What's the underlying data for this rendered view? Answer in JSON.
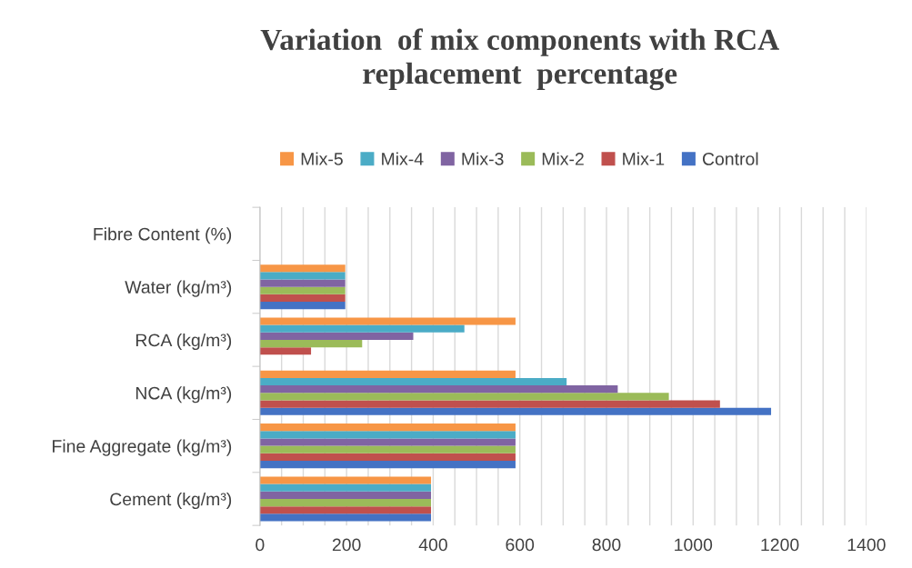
{
  "chart_data": {
    "type": "bar",
    "orientation": "horizontal",
    "title": "Variation  of mix components with RCA\nreplacement  percentage",
    "categories": [
      "Fibre Content (%)",
      "Water (kg/m³)",
      "RCA (kg/m³)",
      "NCA (kg/m³)",
      "Fine Aggregate (kg/m³)",
      "Cement (kg/m³)"
    ],
    "series": [
      {
        "name": "Control",
        "color": "#4472c4",
        "values": [
          0,
          197,
          0,
          1180,
          590,
          395
        ]
      },
      {
        "name": "Mix-1",
        "color": "#c0504d",
        "values": [
          0,
          197,
          118,
          1062,
          590,
          395
        ]
      },
      {
        "name": "Mix-2",
        "color": "#9bbb59",
        "values": [
          0,
          197,
          236,
          944,
          590,
          395
        ]
      },
      {
        "name": "Mix-3",
        "color": "#8064a2",
        "values": [
          0,
          197,
          354,
          826,
          590,
          395
        ]
      },
      {
        "name": "Mix-4",
        "color": "#4bacc6",
        "values": [
          0,
          197,
          472,
          708,
          590,
          395
        ]
      },
      {
        "name": "Mix-5",
        "color": "#f79646",
        "values": [
          0,
          197,
          590,
          590,
          590,
          395
        ]
      }
    ],
    "xlim": [
      0,
      1400
    ],
    "xticks": [
      0,
      {
        "value": 50,
        "label": null
      },
      {
        "value": 100,
        "label": null
      },
      {
        "value": 150,
        "label": null
      },
      200,
      {
        "value": 250,
        "label": null
      },
      {
        "value": 300,
        "label": null
      },
      {
        "value": 350,
        "label": null
      },
      400,
      {
        "value": 450,
        "label": null
      },
      {
        "value": 500,
        "label": null
      },
      {
        "value": 550,
        "label": null
      },
      600,
      {
        "value": 650,
        "label": null
      },
      {
        "value": 700,
        "label": null
      },
      {
        "value": 750,
        "label": null
      },
      800,
      {
        "value": 850,
        "label": null
      },
      {
        "value": 900,
        "label": null
      },
      {
        "value": 950,
        "label": null
      },
      1000,
      {
        "value": 1050,
        "label": null
      },
      {
        "value": 1100,
        "label": null
      },
      {
        "value": 1150,
        "label": null
      },
      1200,
      {
        "value": 1250,
        "label": null
      },
      {
        "value": 1300,
        "label": null
      },
      {
        "value": 1350,
        "label": null
      },
      1400
    ],
    "grid": "x",
    "legend": "top"
  }
}
